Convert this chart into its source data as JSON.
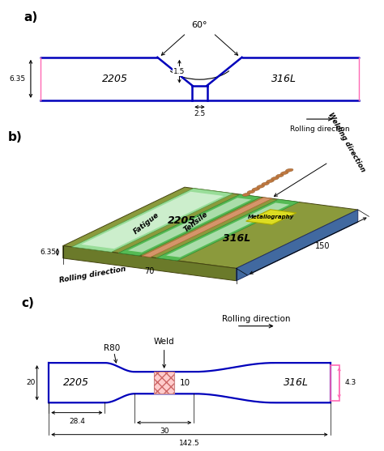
{
  "fig_width": 4.74,
  "fig_height": 5.57,
  "bg_color": "#ffffff",
  "panel_a": {
    "label": "a)",
    "plate_color": "#0000bb",
    "dim_color": "#ff69b4",
    "left_label": "2205",
    "right_label": "316L",
    "dim_635": "6.35",
    "dim_15": "1.5",
    "dim_25": "2.5",
    "dim_60": "60°",
    "rolling_dir": "Rolling direction"
  },
  "panel_b": {
    "label": "b)",
    "plate_top_color": "#8b9a3c",
    "plate_left_color": "#6b7a2a",
    "plate_right_color": "#4169a0",
    "weld_color": "#cc8855",
    "label_2205": "2205",
    "label_316L": "316L",
    "label_tensile": "Tensile",
    "label_fatigue": "Fatigue",
    "label_meta": "Metallography",
    "dim_635": "6.35",
    "dim_70": "70",
    "dim_150": "150",
    "rolling_dir": "Rolling direction",
    "welding_dir": "Welding direction"
  },
  "panel_c": {
    "label": "c)",
    "outline_color": "#0000bb",
    "dim_color": "#ff69b4",
    "weld_fill": "#ffcccc",
    "left_label": "2205",
    "right_label": "316L",
    "weld_label": "Weld",
    "r80_label": "R80",
    "rolling_dir": "Rolling direction",
    "dim_284": "28.4",
    "dim_20": "20",
    "dim_30": "30",
    "dim_1425": "142.5",
    "dim_43": "4.3",
    "dim_10": "10"
  }
}
